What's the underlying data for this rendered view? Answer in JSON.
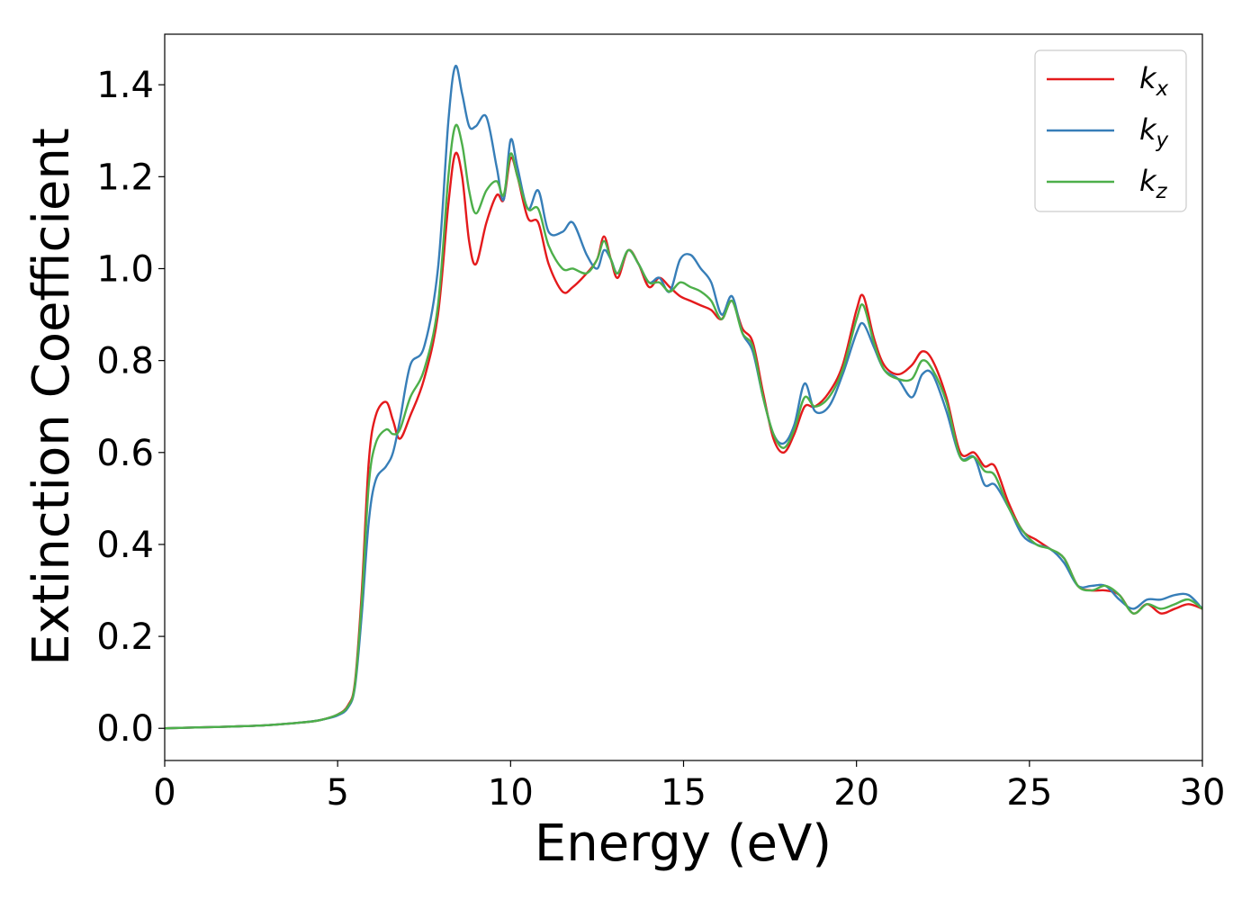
{
  "chart_data": {
    "type": "line",
    "xlabel": "Energy (eV)",
    "ylabel": "Extinction Coefficient",
    "xlim": [
      0,
      30
    ],
    "ylim": [
      -0.07,
      1.51
    ],
    "xticks": [
      0,
      5,
      10,
      15,
      20,
      25,
      30
    ],
    "xtick_labels": [
      "0",
      "5",
      "10",
      "15",
      "20",
      "25",
      "30"
    ],
    "yticks": [
      0.0,
      0.2,
      0.4,
      0.6,
      0.8,
      1.0,
      1.2,
      1.4
    ],
    "ytick_labels": [
      "0.0",
      "0.2",
      "0.4",
      "0.6",
      "0.8",
      "1.0",
      "1.2",
      "1.4"
    ],
    "grid": false,
    "legend_position": "top-right",
    "series": [
      {
        "name": "k_x",
        "base": "k",
        "sub": "x",
        "color": "#e41a1c",
        "x": [
          0,
          1,
          2,
          3,
          4,
          4.5,
          5,
          5.3,
          5.5,
          5.7,
          5.9,
          6.1,
          6.4,
          6.6,
          6.8,
          7.1,
          7.5,
          7.9,
          8.2,
          8.4,
          8.6,
          8.8,
          9.0,
          9.3,
          9.6,
          9.8,
          10.0,
          10.2,
          10.5,
          10.8,
          11.1,
          11.5,
          11.8,
          12.2,
          12.5,
          12.7,
          12.9,
          13.1,
          13.4,
          13.7,
          14.0,
          14.3,
          14.6,
          14.9,
          15.2,
          15.5,
          15.8,
          16.1,
          16.4,
          16.7,
          17.0,
          17.3,
          17.6,
          17.9,
          18.2,
          18.5,
          18.8,
          19.2,
          19.6,
          20.0,
          20.2,
          20.5,
          20.8,
          21.2,
          21.6,
          21.9,
          22.2,
          22.6,
          23.0,
          23.4,
          23.7,
          24.0,
          24.4,
          24.8,
          25.2,
          25.6,
          26.0,
          26.4,
          26.8,
          27.2,
          27.6,
          28.0,
          28.4,
          28.8,
          29.2,
          29.6,
          30.0
        ],
        "y": [
          0.0,
          0.002,
          0.004,
          0.007,
          0.013,
          0.018,
          0.03,
          0.05,
          0.1,
          0.3,
          0.58,
          0.68,
          0.71,
          0.67,
          0.63,
          0.68,
          0.76,
          0.9,
          1.14,
          1.25,
          1.2,
          1.06,
          1.01,
          1.1,
          1.16,
          1.15,
          1.24,
          1.2,
          1.11,
          1.1,
          1.01,
          0.95,
          0.96,
          0.99,
          1.02,
          1.07,
          1.02,
          0.98,
          1.04,
          1.01,
          0.96,
          0.98,
          0.96,
          0.94,
          0.93,
          0.92,
          0.91,
          0.89,
          0.93,
          0.87,
          0.84,
          0.73,
          0.63,
          0.6,
          0.64,
          0.7,
          0.7,
          0.73,
          0.79,
          0.91,
          0.94,
          0.85,
          0.79,
          0.77,
          0.79,
          0.82,
          0.8,
          0.72,
          0.6,
          0.6,
          0.57,
          0.57,
          0.49,
          0.43,
          0.41,
          0.39,
          0.37,
          0.31,
          0.3,
          0.3,
          0.29,
          0.25,
          0.27,
          0.25,
          0.26,
          0.27,
          0.26
        ]
      },
      {
        "name": "k_y",
        "base": "k",
        "sub": "y",
        "color": "#377eb8",
        "x": [
          0,
          1,
          2,
          3,
          4,
          4.5,
          5,
          5.3,
          5.5,
          5.7,
          5.9,
          6.1,
          6.4,
          6.6,
          6.8,
          7.1,
          7.5,
          7.9,
          8.2,
          8.4,
          8.6,
          8.8,
          9.0,
          9.3,
          9.6,
          9.8,
          10.0,
          10.2,
          10.5,
          10.8,
          11.1,
          11.5,
          11.8,
          12.2,
          12.5,
          12.7,
          12.9,
          13.1,
          13.4,
          13.7,
          14.0,
          14.3,
          14.6,
          14.9,
          15.2,
          15.5,
          15.8,
          16.1,
          16.4,
          16.7,
          17.0,
          17.3,
          17.6,
          17.9,
          18.2,
          18.5,
          18.8,
          19.2,
          19.6,
          20.0,
          20.2,
          20.5,
          20.8,
          21.2,
          21.6,
          21.9,
          22.2,
          22.6,
          23.0,
          23.4,
          23.7,
          24.0,
          24.4,
          24.8,
          25.2,
          25.6,
          26.0,
          26.4,
          26.8,
          27.2,
          27.6,
          28.0,
          28.4,
          28.8,
          29.2,
          29.6,
          30.0
        ],
        "y": [
          0.0,
          0.002,
          0.004,
          0.007,
          0.013,
          0.018,
          0.028,
          0.045,
          0.09,
          0.25,
          0.45,
          0.54,
          0.57,
          0.6,
          0.67,
          0.79,
          0.83,
          1.0,
          1.32,
          1.44,
          1.38,
          1.31,
          1.31,
          1.33,
          1.22,
          1.15,
          1.28,
          1.22,
          1.13,
          1.17,
          1.08,
          1.08,
          1.1,
          1.03,
          1.0,
          1.04,
          1.02,
          0.99,
          1.04,
          1.01,
          0.97,
          0.98,
          0.95,
          1.02,
          1.03,
          1.0,
          0.97,
          0.9,
          0.94,
          0.86,
          0.82,
          0.72,
          0.64,
          0.62,
          0.66,
          0.75,
          0.69,
          0.7,
          0.77,
          0.86,
          0.88,
          0.83,
          0.78,
          0.76,
          0.72,
          0.77,
          0.77,
          0.69,
          0.59,
          0.59,
          0.53,
          0.53,
          0.48,
          0.42,
          0.4,
          0.39,
          0.36,
          0.31,
          0.31,
          0.31,
          0.28,
          0.26,
          0.28,
          0.28,
          0.29,
          0.29,
          0.26
        ]
      },
      {
        "name": "k_z",
        "base": "k",
        "sub": "z",
        "color": "#4daf4a",
        "x": [
          0,
          1,
          2,
          3,
          4,
          4.5,
          5,
          5.3,
          5.5,
          5.7,
          5.9,
          6.1,
          6.4,
          6.6,
          6.8,
          7.1,
          7.5,
          7.9,
          8.2,
          8.4,
          8.6,
          8.8,
          9.0,
          9.3,
          9.6,
          9.8,
          10.0,
          10.2,
          10.5,
          10.8,
          11.1,
          11.5,
          11.8,
          12.2,
          12.5,
          12.7,
          12.9,
          13.1,
          13.4,
          13.7,
          14.0,
          14.3,
          14.6,
          14.9,
          15.2,
          15.5,
          15.8,
          16.1,
          16.4,
          16.7,
          17.0,
          17.3,
          17.6,
          17.9,
          18.2,
          18.5,
          18.8,
          19.2,
          19.6,
          20.0,
          20.2,
          20.5,
          20.8,
          21.2,
          21.6,
          21.9,
          22.2,
          22.6,
          23.0,
          23.4,
          23.7,
          24.0,
          24.4,
          24.8,
          25.2,
          25.6,
          26.0,
          26.4,
          26.8,
          27.2,
          27.6,
          28.0,
          28.4,
          28.8,
          29.2,
          29.6,
          30.0
        ],
        "y": [
          0.0,
          0.002,
          0.004,
          0.007,
          0.013,
          0.018,
          0.03,
          0.048,
          0.095,
          0.28,
          0.53,
          0.62,
          0.65,
          0.64,
          0.65,
          0.72,
          0.78,
          0.92,
          1.2,
          1.31,
          1.27,
          1.17,
          1.12,
          1.17,
          1.19,
          1.16,
          1.25,
          1.2,
          1.13,
          1.13,
          1.05,
          1.0,
          1.0,
          0.99,
          1.02,
          1.06,
          1.02,
          0.99,
          1.04,
          1.01,
          0.97,
          0.97,
          0.95,
          0.97,
          0.96,
          0.95,
          0.93,
          0.89,
          0.93,
          0.86,
          0.83,
          0.72,
          0.64,
          0.61,
          0.65,
          0.72,
          0.7,
          0.72,
          0.78,
          0.89,
          0.92,
          0.84,
          0.78,
          0.76,
          0.76,
          0.8,
          0.78,
          0.71,
          0.59,
          0.59,
          0.56,
          0.55,
          0.48,
          0.43,
          0.4,
          0.39,
          0.37,
          0.31,
          0.3,
          0.31,
          0.29,
          0.25,
          0.27,
          0.26,
          0.27,
          0.28,
          0.26
        ]
      }
    ]
  }
}
